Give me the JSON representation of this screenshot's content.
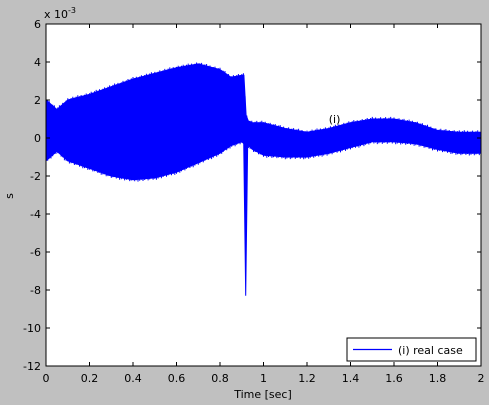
{
  "chart_data": {
    "type": "line",
    "ylabel": "s",
    "xlabel": "Time [sec]",
    "xlim": [
      0,
      2
    ],
    "ylim": [
      -12,
      6
    ],
    "y_multiplier": "x 10",
    "y_exponent": "-3",
    "x_ticks": [
      "0",
      "0.2",
      "0.4",
      "0.6",
      "0.8",
      "1",
      "1.2",
      "1.4",
      "1.6",
      "1.8",
      "2"
    ],
    "y_ticks": [
      "6",
      "4",
      "2",
      "0",
      "-2",
      "-4",
      "-6",
      "-8",
      "-10",
      "-12"
    ],
    "annotation": "(i)",
    "annotation_x": 1.3,
    "annotation_y": 1.0,
    "grid": false,
    "legend_position": "bottom-right",
    "series": [
      {
        "name": "(i) real case",
        "color": "#0000ff",
        "envelope_x": [
          0,
          0.02,
          0.05,
          0.1,
          0.2,
          0.3,
          0.4,
          0.5,
          0.6,
          0.7,
          0.8,
          0.85,
          0.9,
          0.91,
          0.92,
          0.93,
          0.95,
          1.0,
          1.1,
          1.2,
          1.3,
          1.4,
          1.5,
          1.6,
          1.7,
          1.8,
          1.9,
          2.0
        ],
        "envelope_upper": [
          2.0,
          1.8,
          1.5,
          2.0,
          2.3,
          2.7,
          3.1,
          3.4,
          3.7,
          3.9,
          3.6,
          3.2,
          3.3,
          3.3,
          1.2,
          0.9,
          0.8,
          0.8,
          0.5,
          0.3,
          0.5,
          0.8,
          1.0,
          1.0,
          0.8,
          0.4,
          0.3,
          0.3
        ],
        "envelope_lower": [
          -1.2,
          -1.0,
          -0.7,
          -1.2,
          -1.6,
          -2.0,
          -2.2,
          -2.1,
          -1.8,
          -1.3,
          -0.8,
          -0.4,
          -0.2,
          -0.3,
          -0.2,
          -0.4,
          -0.6,
          -0.9,
          -1.0,
          -1.0,
          -0.8,
          -0.5,
          -0.2,
          -0.2,
          -0.3,
          -0.6,
          -0.8,
          -0.8
        ],
        "spike_x": 0.918,
        "spike_y": -8.3
      }
    ]
  }
}
